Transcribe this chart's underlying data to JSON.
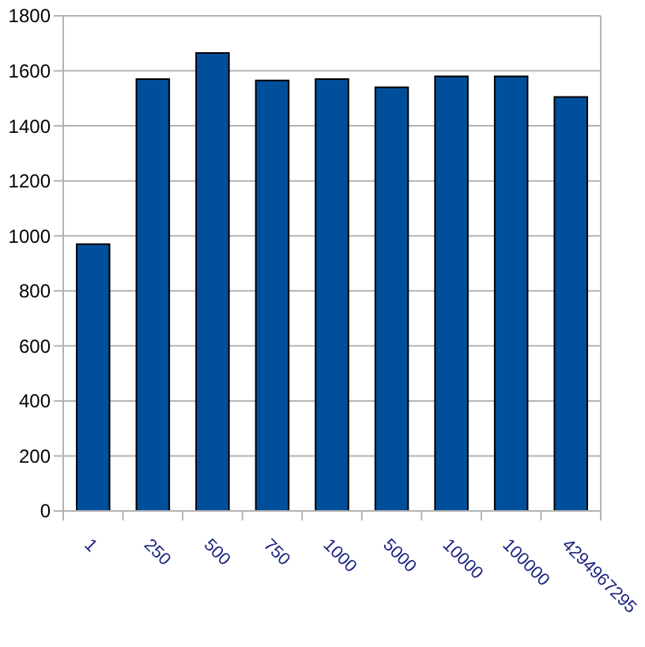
{
  "chart_data": {
    "type": "bar",
    "categories": [
      "1",
      "250",
      "500",
      "750",
      "1000",
      "5000",
      "10000",
      "100000",
      "4294967295"
    ],
    "values": [
      970,
      1570,
      1665,
      1565,
      1570,
      1540,
      1580,
      1580,
      1505
    ],
    "color": "#004f9b",
    "ylim": [
      0,
      1800
    ],
    "yticks": [
      0,
      200,
      400,
      600,
      800,
      1000,
      1200,
      1400,
      1600,
      1800
    ],
    "grid": "y"
  }
}
